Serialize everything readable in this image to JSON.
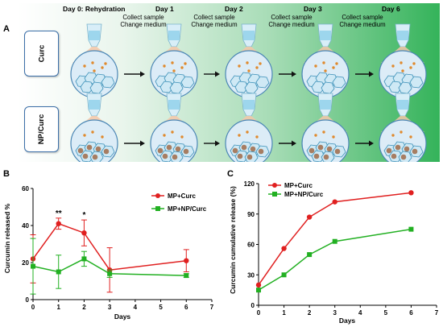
{
  "panel_letters": {
    "a": "A",
    "b": "B",
    "c": "C"
  },
  "panel_a": {
    "rows": [
      "Curc",
      "NP/Curc"
    ],
    "days": [
      "Day 0: Rehydration",
      "Day 1",
      "Day 2",
      "Day 3",
      "Day 6"
    ],
    "notes": [
      {
        "line1": "Collect sample",
        "line2": "Change medium"
      },
      {
        "line1": "Collect sample",
        "line2": "Change medium"
      },
      {
        "line1": "Collect sample",
        "line2": "Change medium"
      },
      {
        "line1": "Collect sample",
        "line2": "Change medium"
      }
    ],
    "colors": {
      "bead": "#e08a2e",
      "np_particle": "#a06a48",
      "cell_fill": "#cfe9f5",
      "cell_edge": "#3a8fb7"
    }
  },
  "chart_data": [
    {
      "type": "line",
      "panel": "B",
      "ylabel": "Curcumin released %",
      "xlabel": "Days",
      "x": [
        0,
        1,
        2,
        3,
        6
      ],
      "xticks": [
        0,
        1,
        2,
        3,
        4,
        5,
        6,
        7
      ],
      "yticks": [
        0,
        20,
        40,
        60
      ],
      "xlim": [
        0,
        7
      ],
      "ylim": [
        0,
        60
      ],
      "series": [
        {
          "name": "MP+Curc",
          "color": "#e02020",
          "marker": "circle",
          "values": [
            22,
            41,
            36,
            16,
            21
          ],
          "errors": [
            13,
            3,
            7,
            12,
            6
          ]
        },
        {
          "name": "MP+NP/Curc",
          "color": "#22b022",
          "marker": "square",
          "values": [
            18,
            15,
            22,
            14,
            13
          ],
          "errors": [
            15,
            9,
            4,
            2,
            1
          ]
        }
      ],
      "annotations": [
        {
          "x": 1,
          "text": "**"
        },
        {
          "x": 2,
          "text": "*"
        }
      ],
      "legend_position": "top-right",
      "grid": false
    },
    {
      "type": "line",
      "panel": "C",
      "ylabel": "Curcumin cumulative release (%)",
      "xlabel": "Days",
      "x": [
        0,
        1,
        2,
        3,
        6
      ],
      "xticks": [
        0,
        1,
        2,
        3,
        4,
        5,
        6,
        7
      ],
      "yticks": [
        0,
        30,
        60,
        90,
        120
      ],
      "xlim": [
        0,
        7
      ],
      "ylim": [
        0,
        120
      ],
      "series": [
        {
          "name": "MP+Curc",
          "color": "#e02020",
          "marker": "circle",
          "values": [
            20,
            56,
            87,
            102,
            111
          ]
        },
        {
          "name": "MP+NP/Curc",
          "color": "#22b022",
          "marker": "square",
          "values": [
            15,
            30,
            50,
            63,
            75
          ]
        }
      ],
      "legend_position": "top-left",
      "grid": false
    }
  ]
}
